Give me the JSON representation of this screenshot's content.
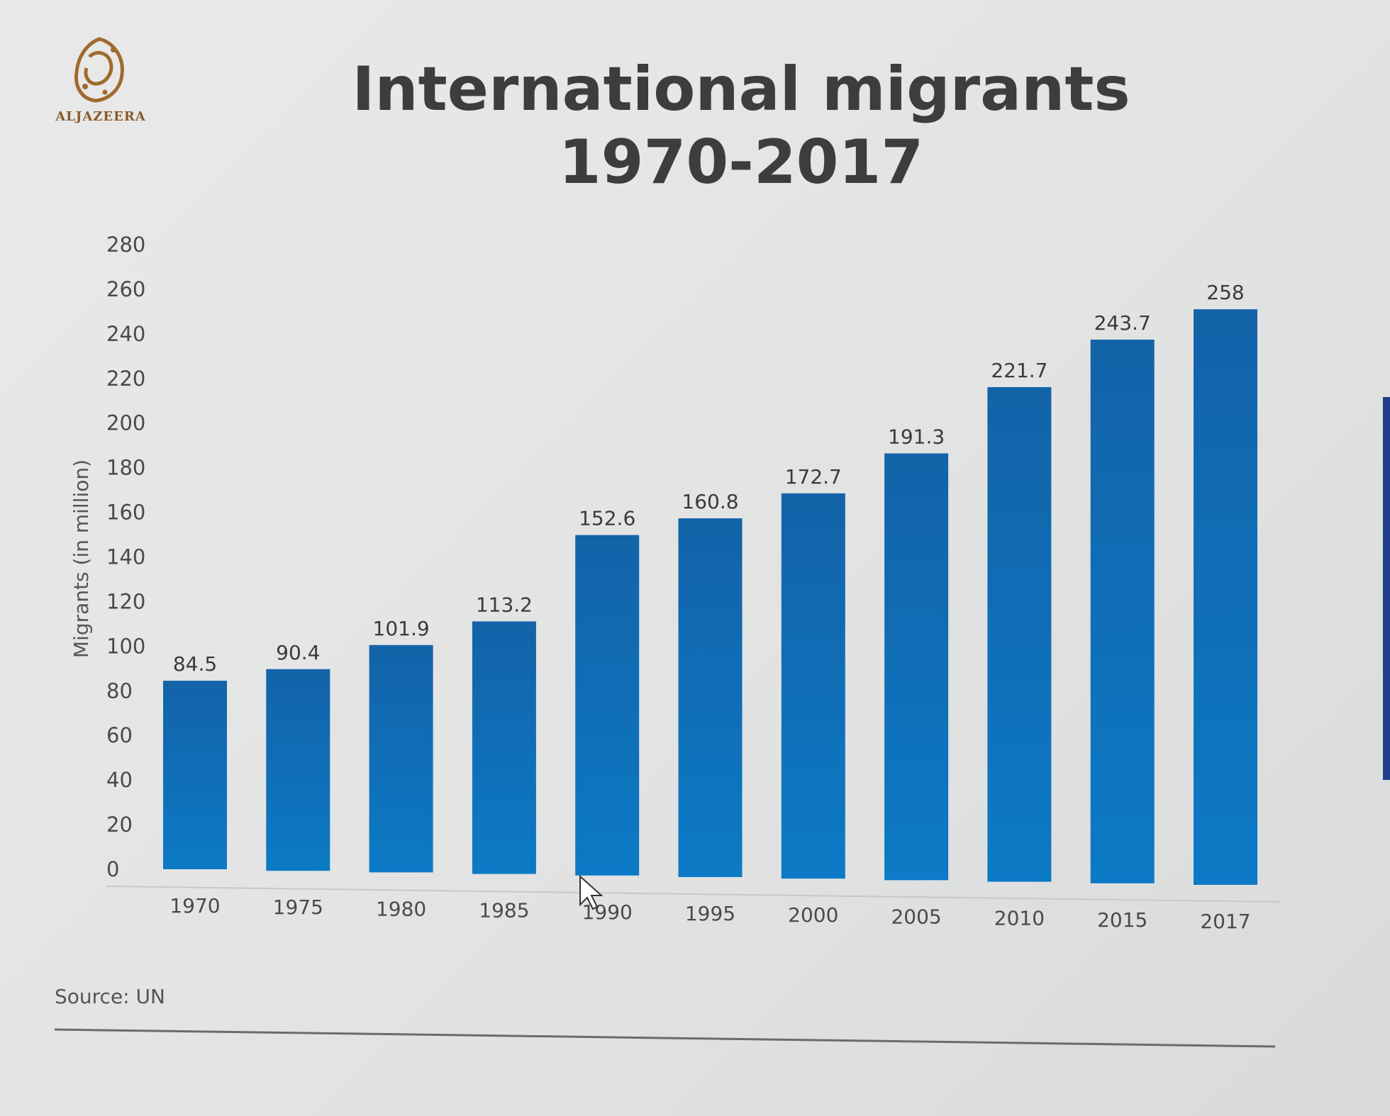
{
  "brand": {
    "name": "ALJAZEERA"
  },
  "source": "Source: UN",
  "icons": {
    "logo": "aljazeera-logo-icon",
    "cursor": "mouse-cursor-icon"
  },
  "colors": {
    "bar": "#0c74c2",
    "bar_dark": "#1363a8",
    "title": "#3f3c3c"
  },
  "chart_data": {
    "type": "bar",
    "title_lines": [
      "International migrants",
      "1970-2017"
    ],
    "title": "International migrants 1970-2017",
    "xlabel": "",
    "ylabel": "Migrants (in million)",
    "ylim": [
      0,
      280
    ],
    "yticks": [
      0,
      20,
      40,
      60,
      80,
      100,
      120,
      140,
      160,
      180,
      200,
      220,
      240,
      260,
      280
    ],
    "grid": false,
    "categories": [
      "1970",
      "1975",
      "1980",
      "1985",
      "1990",
      "1995",
      "2000",
      "2005",
      "2010",
      "2015",
      "2017"
    ],
    "values": [
      84.5,
      90.4,
      101.9,
      113.2,
      152.6,
      160.8,
      172.7,
      191.3,
      221.7,
      243.7,
      258
    ],
    "data_labels": [
      "84.5",
      "90.4",
      "101.9",
      "113.2",
      "152.6",
      "160.8",
      "172.7",
      "191.3",
      "221.7",
      "243.7",
      "258"
    ]
  }
}
